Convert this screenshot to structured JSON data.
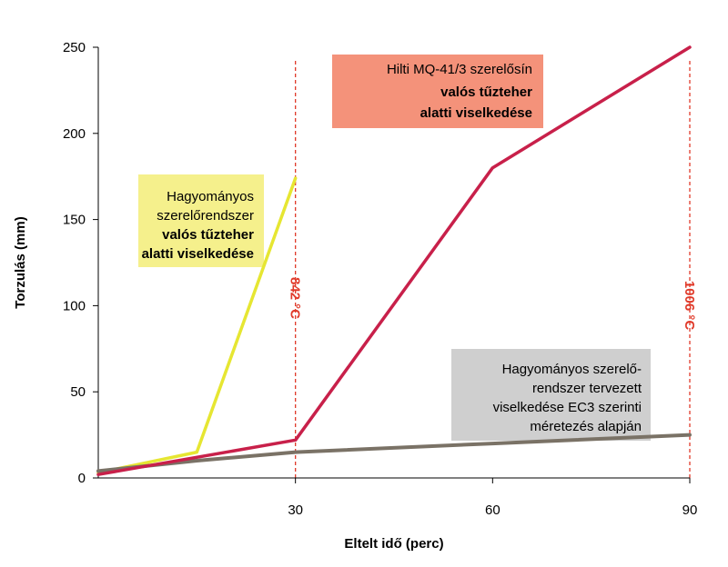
{
  "chart_data": {
    "type": "line",
    "xlabel": "Eltelt idő (perc)",
    "ylabel": "Torzulás (mm)",
    "xlim": [
      0,
      90
    ],
    "ylim": [
      0,
      250
    ],
    "x_ticks": [
      30,
      60,
      90
    ],
    "x_tick_labels": [
      "30",
      "60",
      "90"
    ],
    "y_ticks": [
      0,
      50,
      100,
      150,
      200,
      250
    ],
    "y_tick_labels": [
      "0",
      "50",
      "100",
      "150",
      "200",
      "250"
    ],
    "grid": false,
    "series": [
      {
        "key": "traditional_real",
        "color": "#e6e632",
        "x": [
          0,
          15,
          30
        ],
        "y": [
          3,
          15,
          174
        ]
      },
      {
        "key": "hilti",
        "color": "#c8204a",
        "x": [
          0,
          30,
          60,
          90
        ],
        "y": [
          2,
          22,
          180,
          250
        ]
      },
      {
        "key": "traditional_design",
        "color": "#7a7266",
        "x": [
          0,
          15,
          30,
          60,
          90
        ],
        "y": [
          4,
          10,
          15,
          20,
          25
        ]
      }
    ],
    "reference_lines": [
      {
        "x": 30,
        "label": "842 °C",
        "color": "#e03a2a"
      },
      {
        "x": 90,
        "label": "1006 °C",
        "color": "#e03a2a"
      }
    ],
    "annotations": {
      "traditional_real": {
        "lines": [
          "Hagyományos",
          "szerelőrendszer"
        ],
        "bold_lines": [
          "valós tűzteher",
          "alatti viselkedése"
        ],
        "bg": "#f5f08c"
      },
      "hilti": {
        "lines": [
          "Hilti MQ-41/3 szerelősín"
        ],
        "bold_lines": [
          "valós tűzteher",
          "alatti viselkedése"
        ],
        "bg": "#f4927a"
      },
      "traditional_design": {
        "lines": [
          "Hagyományos szerelő-",
          "rendszer tervezett",
          "viselkedése EC3 szerinti",
          "méretezés alapján"
        ],
        "bold_lines": [],
        "bg": "#cfcfcf"
      }
    }
  }
}
